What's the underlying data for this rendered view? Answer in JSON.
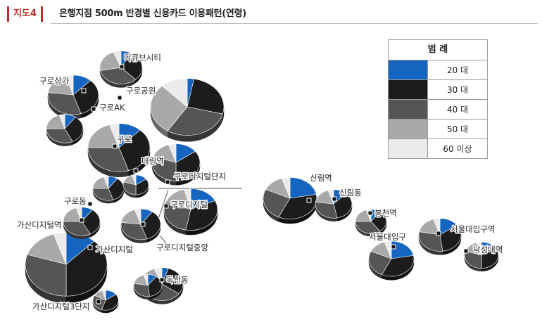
{
  "figure": {
    "tag": "지도4",
    "title": "은행지점 500m 반경별 신용카드 이용패턴(연령)"
  },
  "legend": {
    "title": "범 례",
    "items": [
      {
        "label": "20 대",
        "color": "#1565c0"
      },
      {
        "label": "30 대",
        "color": "#1c1c1c"
      },
      {
        "label": "40 대",
        "color": "#555555"
      },
      {
        "label": "50 대",
        "color": "#a9a9a9"
      },
      {
        "label": "60 이상",
        "color": "#ebebeb"
      }
    ]
  },
  "chart_data": {
    "type": "pie",
    "series_order": [
      "20 대",
      "30 대",
      "40 대",
      "50 대",
      "60 이상"
    ],
    "branches": [
      {
        "name": "디큐브시티",
        "shares": [
          0.08,
          0.3,
          0.34,
          0.22,
          0.06
        ]
      },
      {
        "name": "구로상가",
        "shares": [
          0.12,
          0.33,
          0.32,
          0.18,
          0.05
        ]
      },
      {
        "name": "구로AK",
        "shares": []
      },
      {
        "name": "구로공원",
        "shares": [
          0.03,
          0.26,
          0.3,
          0.29,
          0.12
        ]
      },
      {
        "name": "구로",
        "shares": [
          0.12,
          0.33,
          0.3,
          0.2,
          0.05
        ]
      },
      {
        "name": "대림역",
        "shares": [
          0.15,
          0.35,
          0.3,
          0.15,
          0.05
        ]
      },
      {
        "name": "구로디지털단지",
        "shares": [
          0.1,
          0.35,
          0.3,
          0.2,
          0.05
        ]
      },
      {
        "name": "구로동",
        "shares": [
          0.1,
          0.32,
          0.33,
          0.2,
          0.05
        ]
      },
      {
        "name": "구로디지털",
        "shares": [
          0.18,
          0.35,
          0.28,
          0.15,
          0.04
        ]
      },
      {
        "name": "가산디지털역",
        "shares": [
          0.12,
          0.38,
          0.3,
          0.15,
          0.05
        ]
      },
      {
        "name": "구로디지털중앙",
        "shares": [
          0.1,
          0.35,
          0.32,
          0.18,
          0.05
        ]
      },
      {
        "name": "가산디지털",
        "shares": [
          0.1,
          0.38,
          0.3,
          0.17,
          0.05
        ]
      },
      {
        "name": "독산동",
        "shares": [
          0.05,
          0.3,
          0.35,
          0.24,
          0.06
        ]
      },
      {
        "name": "가산디지털3단지",
        "shares": [
          0.15,
          0.4,
          0.28,
          0.13,
          0.04
        ]
      },
      {
        "name": "신림역",
        "shares": [
          0.22,
          0.35,
          0.25,
          0.13,
          0.05
        ]
      },
      {
        "name": "신림동",
        "shares": [
          0.12,
          0.35,
          0.3,
          0.18,
          0.05
        ]
      },
      {
        "name": "봉천역",
        "shares": [
          0.1,
          0.3,
          0.35,
          0.2,
          0.05
        ]
      },
      {
        "name": "서울대입구",
        "shares": [
          0.22,
          0.35,
          0.25,
          0.13,
          0.05
        ]
      },
      {
        "name": "서울대입구역",
        "shares": [
          0.15,
          0.33,
          0.3,
          0.17,
          0.05
        ]
      },
      {
        "name": "낙성대역",
        "shares": [
          0.15,
          0.35,
          0.3,
          0.15,
          0.05
        ]
      },
      {
        "name": "",
        "shares": [
          0.1,
          0.33,
          0.32,
          0.2,
          0.05
        ]
      },
      {
        "name": "",
        "shares": [
          0.15,
          0.35,
          0.3,
          0.15,
          0.05
        ]
      }
    ]
  }
}
